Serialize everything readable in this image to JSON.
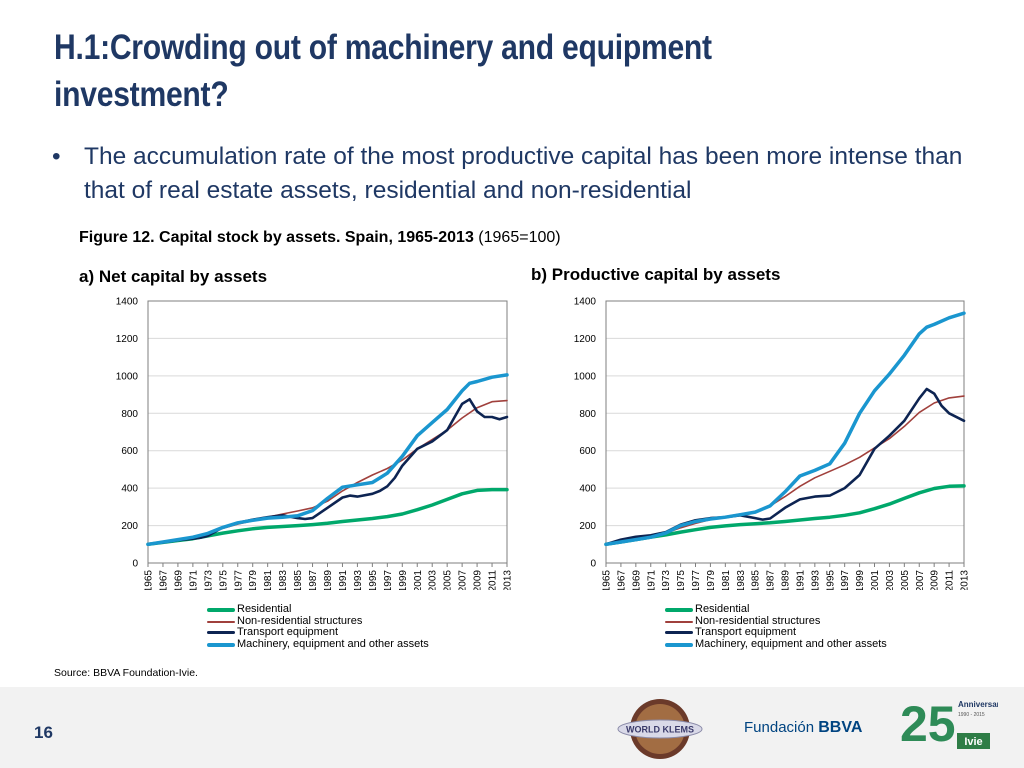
{
  "slide": {
    "title": "H.1:Crowding out of machinery and equipment investment?",
    "bullet_mark": "•",
    "bullet": "The accumulation rate of the most productive capital has been more intense than that of real estate assets, residential and non-residential",
    "figure_caption_bold": "Figure 12. Capital stock by assets. Spain, 1965-2013",
    "figure_caption_rest": " (1965=100)",
    "source": "Source:  BBVA Foundation-Ivie.",
    "page_number": "16"
  },
  "footer": {
    "logo_world_klems": "WORLD KLEMS",
    "logo_fundacion": "Fundación",
    "logo_bbva": "BBVA",
    "logo_25": "25",
    "logo_anniversary": "Anniversary",
    "logo_years": "1990 - 2015",
    "logo_ivie": "Ivie"
  },
  "colors": {
    "title": "#1f3864",
    "residential": "#00a86b",
    "nonresidential": "#a0403c",
    "transport": "#0d2452",
    "machinery": "#1a96cf",
    "grid": "#d9d9d9",
    "axis": "#7f7f7f"
  },
  "chart_data": [
    {
      "type": "line",
      "title": "a) Net capital by assets",
      "xlabel": "",
      "ylabel": "",
      "ylim": [
        0,
        1400
      ],
      "yticks": [
        0,
        200,
        400,
        600,
        800,
        1000,
        1200,
        1400
      ],
      "xlim": [
        1965,
        2013
      ],
      "xticks": [
        1965,
        1967,
        1969,
        1971,
        1973,
        1975,
        1977,
        1979,
        1981,
        1983,
        1985,
        1987,
        1989,
        1991,
        1993,
        1995,
        1997,
        1999,
        2001,
        2003,
        2005,
        2007,
        2009,
        2011,
        2013
      ],
      "grid": true,
      "legend": "bottom",
      "series": [
        {
          "name": "Residential",
          "key": "residential",
          "x": [
            1965,
            1967,
            1969,
            1971,
            1973,
            1975,
            1977,
            1979,
            1981,
            1983,
            1985,
            1987,
            1989,
            1991,
            1993,
            1995,
            1997,
            1999,
            2001,
            2003,
            2005,
            2007,
            2009,
            2011,
            2013
          ],
          "values": [
            100,
            110,
            120,
            130,
            145,
            160,
            172,
            183,
            190,
            195,
            200,
            205,
            212,
            222,
            230,
            238,
            248,
            262,
            285,
            310,
            340,
            370,
            388,
            392,
            392
          ]
        },
        {
          "name": "Non-residential structures",
          "key": "nonresidential",
          "x": [
            1965,
            1967,
            1969,
            1971,
            1973,
            1975,
            1977,
            1979,
            1981,
            1983,
            1985,
            1987,
            1989,
            1991,
            1993,
            1995,
            1997,
            1999,
            2001,
            2003,
            2005,
            2007,
            2009,
            2011,
            2013
          ],
          "values": [
            100,
            112,
            125,
            138,
            158,
            185,
            208,
            225,
            245,
            262,
            278,
            295,
            330,
            385,
            430,
            470,
            505,
            550,
            610,
            660,
            710,
            775,
            830,
            862,
            868
          ]
        },
        {
          "name": "Transport equipment",
          "key": "transport",
          "x": [
            1965,
            1967,
            1969,
            1971,
            1972,
            1973,
            1975,
            1977,
            1979,
            1981,
            1983,
            1985,
            1986,
            1987,
            1989,
            1991,
            1992,
            1993,
            1995,
            1996,
            1997,
            1998,
            1999,
            2001,
            2003,
            2005,
            2007,
            2008,
            2009,
            2010,
            2011,
            2012,
            2013
          ],
          "values": [
            100,
            110,
            122,
            130,
            135,
            145,
            190,
            215,
            232,
            245,
            255,
            240,
            235,
            240,
            295,
            350,
            360,
            355,
            370,
            385,
            410,
            455,
            520,
            610,
            650,
            710,
            850,
            875,
            810,
            780,
            780,
            768,
            780
          ]
        },
        {
          "name": "Machinery, equipment and other assets",
          "key": "machinery",
          "x": [
            1965,
            1967,
            1969,
            1971,
            1973,
            1975,
            1977,
            1979,
            1981,
            1983,
            1985,
            1987,
            1989,
            1991,
            1993,
            1995,
            1997,
            1999,
            2001,
            2003,
            2005,
            2007,
            2008,
            2009,
            2011,
            2013
          ],
          "values": [
            100,
            112,
            125,
            138,
            158,
            190,
            215,
            228,
            240,
            245,
            252,
            280,
            345,
            405,
            418,
            430,
            480,
            570,
            680,
            750,
            820,
            920,
            960,
            970,
            993,
            1005
          ]
        }
      ]
    },
    {
      "type": "line",
      "title": "b) Productive capital by assets",
      "xlabel": "",
      "ylabel": "",
      "ylim": [
        0,
        1400
      ],
      "yticks": [
        0,
        200,
        400,
        600,
        800,
        1000,
        1200,
        1400
      ],
      "xlim": [
        1965,
        2013
      ],
      "xticks": [
        1965,
        1967,
        1969,
        1971,
        1973,
        1975,
        1977,
        1979,
        1981,
        1983,
        1985,
        1987,
        1989,
        1991,
        1993,
        1995,
        1997,
        1999,
        2001,
        2003,
        2005,
        2007,
        2009,
        2011,
        2013
      ],
      "grid": true,
      "legend": "bottom",
      "series": [
        {
          "name": "Residential",
          "key": "residential",
          "x": [
            1965,
            1967,
            1969,
            1971,
            1973,
            1975,
            1977,
            1979,
            1981,
            1983,
            1985,
            1987,
            1989,
            1991,
            1993,
            1995,
            1997,
            1999,
            2001,
            2003,
            2005,
            2007,
            2009,
            2011,
            2013
          ],
          "values": [
            100,
            112,
            125,
            138,
            150,
            165,
            178,
            190,
            198,
            205,
            210,
            215,
            222,
            230,
            238,
            245,
            255,
            268,
            290,
            315,
            345,
            375,
            398,
            410,
            412
          ]
        },
        {
          "name": "Non-residential structures",
          "key": "nonresidential",
          "x": [
            1965,
            1967,
            1969,
            1971,
            1973,
            1975,
            1977,
            1979,
            1981,
            1983,
            1985,
            1987,
            1989,
            1991,
            1993,
            1995,
            1997,
            1999,
            2001,
            2003,
            2005,
            2007,
            2009,
            2011,
            2013
          ],
          "values": [
            100,
            115,
            130,
            143,
            160,
            188,
            212,
            232,
            248,
            262,
            275,
            305,
            355,
            410,
            455,
            490,
            525,
            565,
            615,
            665,
            730,
            805,
            855,
            882,
            892
          ]
        },
        {
          "name": "Transport equipment",
          "key": "transport",
          "x": [
            1965,
            1967,
            1969,
            1971,
            1973,
            1975,
            1977,
            1979,
            1981,
            1983,
            1985,
            1986,
            1987,
            1989,
            1991,
            1993,
            1995,
            1997,
            1999,
            2001,
            2003,
            2005,
            2007,
            2008,
            2009,
            2010,
            2011,
            2013
          ],
          "values": [
            100,
            125,
            140,
            148,
            165,
            205,
            228,
            240,
            245,
            255,
            240,
            232,
            238,
            295,
            340,
            355,
            360,
            400,
            470,
            610,
            680,
            760,
            880,
            930,
            905,
            840,
            800,
            760
          ]
        },
        {
          "name": "Machinery, equipment and other assets",
          "key": "machinery",
          "x": [
            1965,
            1967,
            1969,
            1971,
            1973,
            1975,
            1977,
            1979,
            1981,
            1983,
            1985,
            1987,
            1989,
            1991,
            1993,
            1995,
            1997,
            1999,
            2001,
            2003,
            2005,
            2007,
            2008,
            2009,
            2011,
            2013
          ],
          "values": [
            100,
            112,
            125,
            138,
            160,
            200,
            222,
            235,
            245,
            258,
            272,
            305,
            380,
            465,
            495,
            530,
            640,
            800,
            920,
            1010,
            1110,
            1225,
            1260,
            1275,
            1310,
            1335
          ]
        }
      ]
    }
  ]
}
